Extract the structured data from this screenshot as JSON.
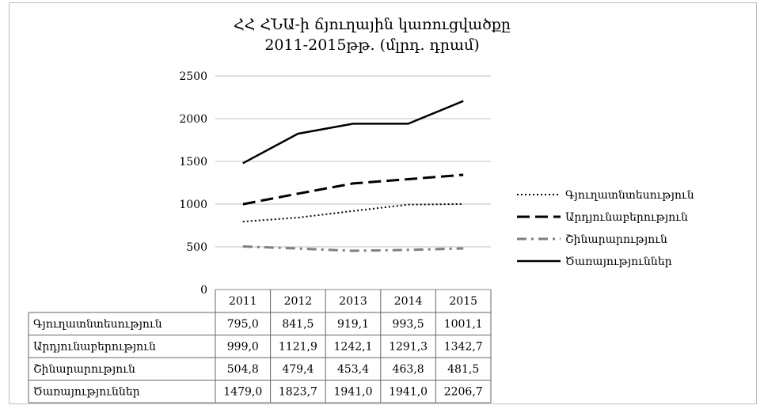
{
  "chart_data": {
    "type": "line",
    "title_line1": "ՀՀ ՀՆԱ-ի ճյուղային կառուցվածքը",
    "title_line2": "2011-2015թթ. (մլրդ. դրամ)",
    "categories": [
      "2011",
      "2012",
      "2013",
      "2014",
      "2015"
    ],
    "ylim": [
      0,
      2500
    ],
    "yticks": [
      "0",
      "500",
      "1000",
      "1500",
      "2000",
      "2500"
    ],
    "ytick_values": [
      0,
      500,
      1000,
      1500,
      2000,
      2500
    ],
    "grid": true,
    "legend_position": "right",
    "series": [
      {
        "name": "Գյուղատնտեսություն",
        "values": [
          795.0,
          841.5,
          919.1,
          993.5,
          1001.1
        ],
        "labels": [
          "795,0",
          "841,5",
          "919,1",
          "993,5",
          "1001,1"
        ],
        "style": "dotted",
        "color": "#000000"
      },
      {
        "name": "Արդյունաբերություն",
        "values": [
          999.0,
          1121.9,
          1242.1,
          1291.3,
          1342.7
        ],
        "labels": [
          "999,0",
          "1121,9",
          "1242,1",
          "1291,3",
          "1342,7"
        ],
        "style": "dashed",
        "color": "#000000"
      },
      {
        "name": "Շինարարություն",
        "values": [
          504.8,
          479.4,
          453.4,
          463.8,
          481.5
        ],
        "labels": [
          "504,8",
          "479,4",
          "453,4",
          "463,8",
          "481,5"
        ],
        "style": "dashdot",
        "color": "#7f7f7f"
      },
      {
        "name": "Ծառայություններ",
        "values": [
          1479.0,
          1823.7,
          1941.0,
          1941.0,
          2206.7
        ],
        "labels": [
          "1479,0",
          "1823,7",
          "1941,0",
          "1941,0",
          "2206,7"
        ],
        "style": "solid",
        "color": "#000000"
      }
    ]
  }
}
